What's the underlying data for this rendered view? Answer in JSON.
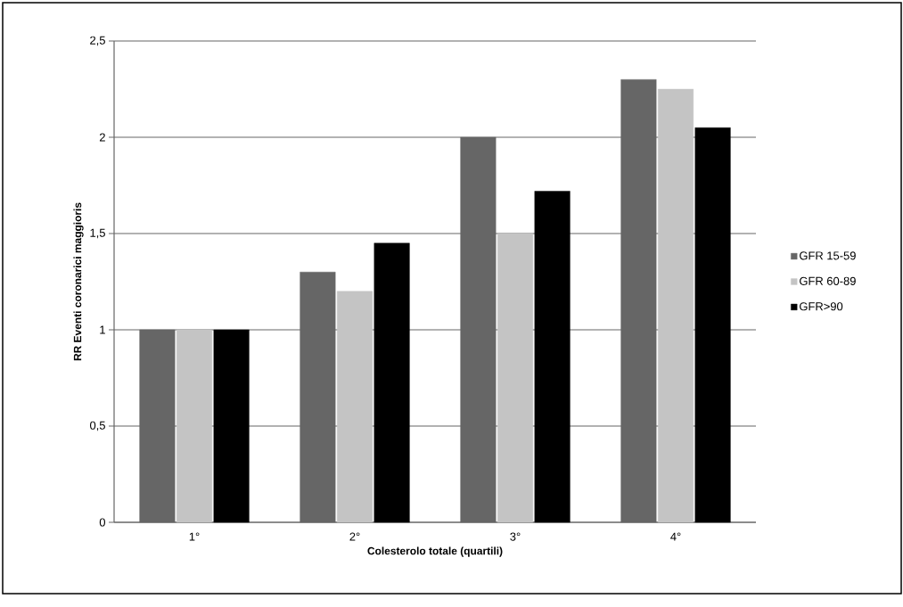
{
  "chart_data": {
    "type": "bar",
    "xlabel": "Colesterolo totale  (quartili)",
    "ylabel": "RR  Eventi coronarici maggioris",
    "categories": [
      "1°",
      "2°",
      "3°",
      "4°"
    ],
    "series": [
      {
        "name": "GFR 15-59",
        "color": "#666666",
        "values": [
          1,
          1.3,
          2.0,
          2.3
        ]
      },
      {
        "name": "GFR 60-89",
        "color": "#c4c4c4",
        "values": [
          1,
          1.2,
          1.5,
          2.25
        ]
      },
      {
        "name": "GFR>90",
        "color": "#000000",
        "values": [
          1,
          1.45,
          1.72,
          2.05
        ]
      }
    ],
    "ylim": [
      0,
      2.5
    ],
    "yticks": [
      0,
      {
        "value": 0.5,
        "label": "0,5"
      },
      1,
      {
        "value": 1.5,
        "label": "1,5"
      },
      2,
      {
        "value": 2.5,
        "label": "2,5"
      }
    ],
    "grid": "y",
    "legend": "right"
  }
}
